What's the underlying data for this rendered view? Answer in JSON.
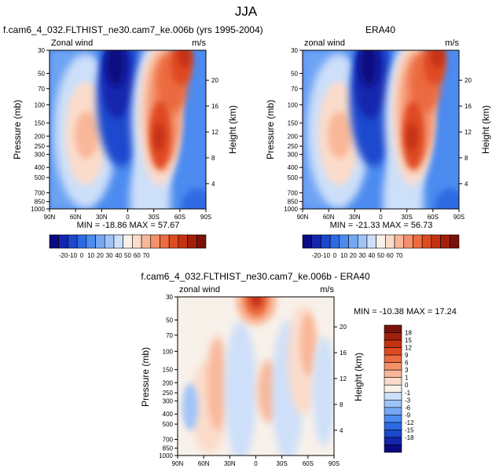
{
  "figure": {
    "title": "JJA"
  },
  "colors": {
    "neg": [
      "#0a0a82",
      "#1225ae",
      "#1c48cd",
      "#2d6ae2",
      "#4c8bf0",
      "#74a8f5",
      "#a0c4f8",
      "#cddff9"
    ],
    "neutral": "#f8f1ea",
    "pos": [
      "#fbdccb",
      "#f9b799",
      "#f4906a",
      "#ec6b40",
      "#df4a20",
      "#c53212",
      "#a11f0b",
      "#791208"
    ]
  },
  "chart_data": [
    {
      "type": "heatmap",
      "id": "model",
      "title": "f.cam6_4_032.FLTHIST_ne30.cam7_ke.006b (yrs 1995-2004)",
      "left_label": "Zonal wind",
      "right_label": "m/s",
      "ylabel": "Pressure (mb)",
      "ylabel_right": "Height (km)",
      "x_ticks": [
        "90N",
        "60N",
        "30N",
        "0",
        "30S",
        "60S",
        "90S"
      ],
      "xlim": [
        90,
        -90
      ],
      "y_ticks": [
        "30",
        "50",
        "70",
        "100",
        "150",
        "200",
        "250",
        "300",
        "400",
        "500",
        "700",
        "850",
        "1000"
      ],
      "y_tick_values": [
        30,
        50,
        70,
        100,
        150,
        200,
        250,
        300,
        400,
        500,
        700,
        850,
        1000
      ],
      "ylim": [
        30,
        1000
      ],
      "y2_ticks": [
        "20",
        "16",
        "12",
        "8",
        "4"
      ],
      "y2_tick_values": [
        20,
        16,
        12,
        8,
        4
      ],
      "stats": "MIN = -18.86   MAX =  57.67",
      "min": -18.86,
      "max": 57.67,
      "colorbar_labels": [
        "-20",
        "-10",
        "0",
        "10",
        "20",
        "30",
        "40",
        "50",
        "60",
        "70"
      ],
      "scale": 1.0
    },
    {
      "type": "heatmap",
      "id": "obs",
      "title": "ERA40",
      "left_label": "zonal wind",
      "right_label": "m/s",
      "ylabel": "Pressure (mb)",
      "ylabel_right": "Height (km)",
      "x_ticks": [
        "90N",
        "60N",
        "30N",
        "0",
        "30S",
        "60S",
        "90S"
      ],
      "xlim": [
        90,
        -90
      ],
      "y_ticks": [
        "30",
        "50",
        "70",
        "100",
        "150",
        "200",
        "250",
        "300",
        "400",
        "500",
        "700",
        "850",
        "1000"
      ],
      "y_tick_values": [
        30,
        50,
        70,
        100,
        150,
        200,
        250,
        300,
        400,
        500,
        700,
        850,
        1000
      ],
      "ylim": [
        30,
        1000
      ],
      "y2_ticks": [
        "20",
        "16",
        "12",
        "8",
        "4"
      ],
      "y2_tick_values": [
        20,
        16,
        12,
        8,
        4
      ],
      "stats": "MIN = -21.33   MAX =  56.73",
      "min": -21.33,
      "max": 56.73,
      "colorbar_labels": [
        "-20",
        "-10",
        "0",
        "10",
        "20",
        "30",
        "40",
        "50",
        "60",
        "70"
      ],
      "scale": 0.98
    },
    {
      "type": "heatmap",
      "id": "diff",
      "title": "f.cam6_4_032.FLTHIST_ne30.cam7_ke.006b - ERA40",
      "left_label": "zonal wind",
      "right_label": "m/s",
      "ylabel": "Pressure (mb)",
      "ylabel_right": "Height (km)",
      "x_ticks": [
        "90N",
        "60N",
        "30N",
        "0",
        "30S",
        "60S",
        "90S"
      ],
      "xlim": [
        90,
        -90
      ],
      "y_ticks": [
        "30",
        "50",
        "70",
        "100",
        "150",
        "200",
        "250",
        "300",
        "400",
        "500",
        "700",
        "850",
        "1000"
      ],
      "y_tick_values": [
        30,
        50,
        70,
        100,
        150,
        200,
        250,
        300,
        400,
        500,
        700,
        850,
        1000
      ],
      "ylim": [
        30,
        1000
      ],
      "y2_ticks": [
        "20",
        "16",
        "12",
        "8",
        "4"
      ],
      "y2_tick_values": [
        20,
        16,
        12,
        8,
        4
      ],
      "stats": "MIN = -10.38   MAX =  17.24",
      "min": -10.38,
      "max": 17.24,
      "colorbar_labels": [
        "18",
        "15",
        "12",
        "9",
        "6",
        "3",
        "1",
        "0",
        "-1",
        "-3",
        "-6",
        "-9",
        "-12",
        "-15",
        "-18"
      ]
    }
  ]
}
